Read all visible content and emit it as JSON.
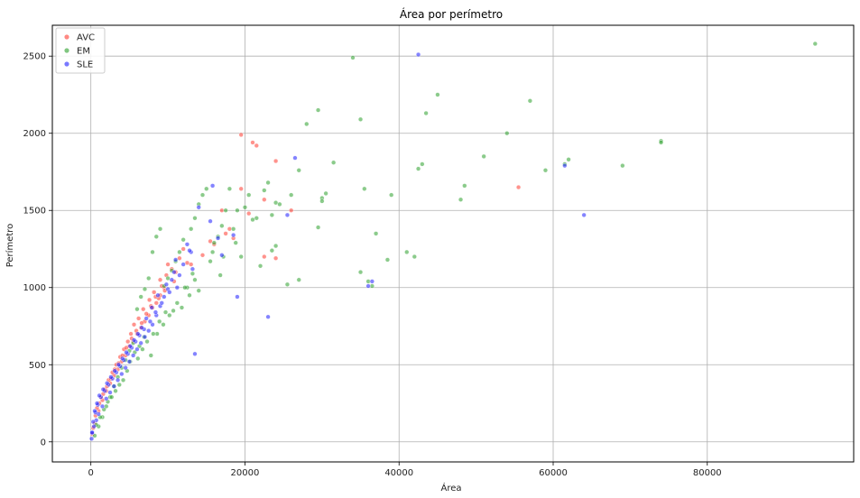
{
  "chart_data": {
    "type": "scatter",
    "title": "Área por perímetro",
    "xlabel": "Área",
    "ylabel": "Perímetro",
    "xlim": [
      -5000,
      99000
    ],
    "ylim": [
      -130,
      2700
    ],
    "xticks": [
      0,
      20000,
      40000,
      60000,
      80000
    ],
    "yticks": [
      0,
      500,
      1000,
      1500,
      2000,
      2500
    ],
    "grid": true,
    "legend_position": "top-left",
    "series": [
      {
        "name": "AVC",
        "color": "#ff3b30",
        "x": [
          19500,
          21000,
          21500,
          24000,
          19500,
          22500,
          26000,
          22500,
          24000,
          55500,
          17000,
          18000,
          15500,
          12000,
          11500,
          10500,
          10000,
          9800,
          9500,
          9000,
          8500,
          8000,
          7500,
          7000,
          6500,
          6000,
          5500,
          5000,
          4500,
          4000,
          3500,
          3000,
          2500,
          2000,
          1500,
          1000,
          500,
          200,
          9000,
          8200,
          7600,
          6800,
          6200,
          5600,
          5200,
          4800,
          4300,
          3800,
          3300,
          2800,
          2300,
          1800,
          1300,
          800,
          11000,
          13000,
          14500,
          16000,
          17500,
          18500,
          20500,
          12500,
          10800,
          9600,
          8800,
          7200,
          6600,
          5900,
          5300,
          4600,
          4100,
          3600,
          3100,
          2600,
          2100,
          1600,
          1100,
          600,
          300,
          7800,
          8400,
          9200
        ],
        "y": [
          1990,
          1940,
          1920,
          1820,
          1640,
          1570,
          1500,
          1200,
          1190,
          1650,
          1500,
          1380,
          1300,
          1250,
          1190,
          1120,
          1150,
          1080,
          1000,
          950,
          900,
          870,
          820,
          780,
          740,
          700,
          650,
          620,
          560,
          520,
          470,
          430,
          380,
          330,
          270,
          200,
          120,
          50,
          1050,
          970,
          920,
          860,
          800,
          760,
          700,
          650,
          600,
          550,
          500,
          450,
          400,
          340,
          290,
          220,
          1100,
          1150,
          1210,
          1280,
          1350,
          1320,
          1480,
          1160,
          1040,
          980,
          930,
          830,
          770,
          720,
          670,
          610,
          560,
          510,
          470,
          410,
          360,
          310,
          250,
          170,
          90,
          880,
          940,
          1010
        ]
      },
      {
        "name": "EM",
        "color": "#2ca02c",
        "x": [
          94000,
          74000,
          74000,
          69000,
          62000,
          61500,
          59000,
          57000,
          54000,
          51000,
          48500,
          48000,
          45000,
          43500,
          43000,
          42500,
          42000,
          41000,
          39000,
          38500,
          37000,
          36500,
          36000,
          35500,
          35000,
          35000,
          34000,
          31500,
          30500,
          30000,
          30000,
          29500,
          29500,
          28000,
          27000,
          27000,
          26000,
          25500,
          24500,
          24000,
          24000,
          23500,
          23500,
          23000,
          22500,
          22000,
          21500,
          21000,
          20500,
          20000,
          19500,
          19000,
          18500,
          18000,
          17500,
          17000,
          16500,
          16000,
          15500,
          15000,
          14500,
          14000,
          13500,
          13000,
          12500,
          12000,
          11500,
          11000,
          10500,
          10000,
          9500,
          9000,
          8500,
          8000,
          7500,
          7000,
          6500,
          6000,
          5500,
          5000,
          4500,
          4000,
          3500,
          3000,
          2500,
          2000,
          1500,
          1000,
          500,
          14000,
          13500,
          12800,
          11800,
          10200,
          9400,
          8600,
          7800,
          6900,
          6300,
          5700,
          5100,
          4700,
          4200,
          3700,
          3200,
          2700,
          2200,
          1700,
          1200,
          700,
          18800,
          17200,
          15800,
          16800,
          13200,
          12200,
          11200,
          10700,
          9700,
          8900,
          8100,
          7300,
          6700,
          6100
        ],
        "y": [
          2580,
          1950,
          1940,
          1790,
          1830,
          1800,
          1760,
          2210,
          2000,
          1850,
          1660,
          1570,
          2250,
          2130,
          1800,
          1770,
          1200,
          1230,
          1600,
          1180,
          1350,
          1010,
          1040,
          1640,
          2090,
          1100,
          2490,
          1810,
          1610,
          1580,
          1560,
          2150,
          1390,
          2060,
          1760,
          1050,
          1600,
          1020,
          1540,
          1550,
          1270,
          1470,
          1240,
          1680,
          1630,
          1140,
          1450,
          1440,
          1600,
          1520,
          1200,
          1500,
          1380,
          1640,
          1500,
          1400,
          1330,
          1290,
          1170,
          1640,
          1600,
          1540,
          1450,
          1380,
          1000,
          1310,
          1230,
          1170,
          1110,
          1060,
          1010,
          1380,
          1330,
          1230,
          1060,
          990,
          940,
          860,
          640,
          590,
          530,
          480,
          420,
          360,
          290,
          230,
          160,
          100,
          40,
          980,
          1050,
          950,
          870,
          820,
          760,
          700,
          560,
          680,
          620,
          580,
          520,
          460,
          400,
          370,
          330,
          290,
          260,
          210,
          160,
          110,
          1290,
          1200,
          1230,
          1080,
          1090,
          1000,
          900,
          850,
          840,
          780,
          700,
          650,
          600,
          540
        ]
      },
      {
        "name": "SLE",
        "color": "#1f1fff",
        "x": [
          42500,
          61500,
          64000,
          36500,
          36000,
          26500,
          25500,
          23000,
          15800,
          14000,
          15500,
          13000,
          12500,
          12000,
          11500,
          11000,
          10500,
          10000,
          9500,
          9000,
          8500,
          8000,
          7500,
          7000,
          6500,
          6000,
          5500,
          5000,
          4500,
          4000,
          3500,
          3000,
          2500,
          2000,
          1500,
          1000,
          700,
          400,
          200,
          100,
          13500,
          11200,
          10200,
          9200,
          8400,
          7700,
          6900,
          6300,
          5800,
          5300,
          4800,
          4300,
          3800,
          3300,
          2800,
          2300,
          1800,
          1300,
          900,
          600,
          300,
          150,
          19000,
          18500,
          17000,
          16500,
          12800,
          10800,
          9800,
          8700,
          7900,
          7200,
          6600,
          6100,
          5600,
          5100,
          4600,
          4100,
          3600,
          3100,
          2600,
          2100,
          1600,
          1100,
          800,
          500,
          13200
        ],
        "y": [
          2510,
          1790,
          1470,
          1040,
          1010,
          1840,
          1470,
          810,
          1660,
          1520,
          1430,
          1230,
          1280,
          1150,
          1080,
          1180,
          1050,
          990,
          940,
          880,
          820,
          760,
          720,
          680,
          640,
          600,
          560,
          520,
          480,
          440,
          400,
          360,
          320,
          280,
          230,
          180,
          140,
          100,
          60,
          20,
          570,
          1000,
          970,
          900,
          840,
          780,
          730,
          690,
          650,
          610,
          570,
          530,
          490,
          450,
          410,
          370,
          330,
          290,
          240,
          190,
          130,
          60,
          940,
          1340,
          1210,
          1320,
          1240,
          1100,
          1020,
          950,
          870,
          800,
          740,
          700,
          660,
          620,
          580,
          540,
          500,
          460,
          420,
          380,
          340,
          300,
          250,
          200,
          1120
        ]
      }
    ]
  }
}
